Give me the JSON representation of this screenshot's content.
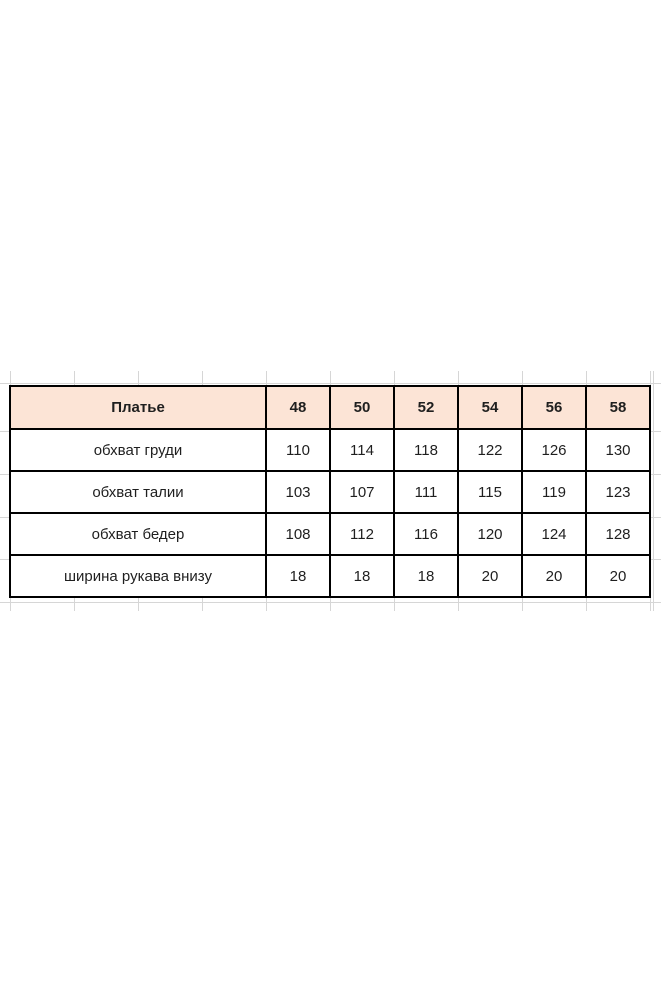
{
  "table": {
    "header": {
      "label": "Платье",
      "sizes": [
        "48",
        "50",
        "52",
        "54",
        "56",
        "58"
      ]
    },
    "rows": [
      {
        "label": "обхват груди",
        "values": [
          "110",
          "114",
          "118",
          "122",
          "126",
          "130"
        ]
      },
      {
        "label": "обхват талии",
        "values": [
          "103",
          "107",
          "111",
          "115",
          "119",
          "123"
        ]
      },
      {
        "label": "обхват бедер",
        "values": [
          "108",
          "112",
          "116",
          "120",
          "124",
          "128"
        ]
      },
      {
        "label": "ширина рукава внизу",
        "values": [
          "18",
          "18",
          "18",
          "20",
          "20",
          "20"
        ]
      }
    ],
    "colors": {
      "header_background": "#fce4d6",
      "table_border": "#000000",
      "spreadsheet_gridline": "#d6d6d6",
      "text": "#1f1f1f",
      "page_background": "#ffffff"
    }
  },
  "chart_data": {
    "type": "table",
    "title": "Платье",
    "categories": [
      "48",
      "50",
      "52",
      "54",
      "56",
      "58"
    ],
    "series": [
      {
        "name": "обхват груди",
        "values": [
          110,
          114,
          118,
          122,
          126,
          130
        ]
      },
      {
        "name": "обхват талии",
        "values": [
          103,
          107,
          111,
          115,
          119,
          123
        ]
      },
      {
        "name": "обхват бедер",
        "values": [
          108,
          112,
          116,
          120,
          124,
          128
        ]
      },
      {
        "name": "ширина рукава внизу",
        "values": [
          18,
          18,
          18,
          20,
          20,
          20
        ]
      }
    ]
  }
}
